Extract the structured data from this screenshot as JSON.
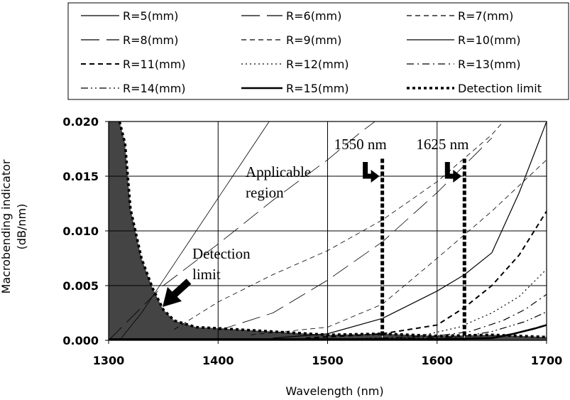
{
  "chart_data": {
    "type": "line",
    "xlabel": "Wavelength (nm)",
    "ylabel": [
      "Macrobending indicator",
      "(dB/nm)"
    ],
    "xlim": [
      1300,
      1700
    ],
    "ylim": [
      0,
      0.02
    ],
    "x_ticks": [
      "1300",
      "1400",
      "1500",
      "1600",
      "1700"
    ],
    "y_ticks": [
      "0.000",
      "0.005",
      "0.010",
      "0.015",
      "0.020"
    ],
    "grid": true,
    "legend_position": "top",
    "series": [
      {
        "name": "R=5(mm)",
        "dash": "solid",
        "width": 0.8,
        "x": [
          1310,
          1330,
          1350,
          1370,
          1400,
          1420,
          1440,
          1460
        ],
        "y": [
          0,
          0.0025,
          0.0055,
          0.0085,
          0.013,
          0.016,
          0.019,
          0.022
        ]
      },
      {
        "name": "R=6(mm)",
        "dash": "longdash",
        "width": 0.8,
        "x": [
          1300,
          1350,
          1400,
          1450,
          1500,
          1530,
          1550
        ],
        "y": [
          0,
          0.005,
          0.0088,
          0.0128,
          0.0165,
          0.019,
          0.0205
        ]
      },
      {
        "name": "R=7(mm)",
        "dash": "dash",
        "width": 0.8,
        "x": [
          1360,
          1400,
          1450,
          1500,
          1550,
          1600,
          1650,
          1665
        ],
        "y": [
          0.001,
          0.0035,
          0.006,
          0.0082,
          0.011,
          0.0145,
          0.0188,
          0.0205
        ]
      },
      {
        "name": "R=8(mm)",
        "dash": "longdash",
        "width": 0.8,
        "x": [
          1400,
          1450,
          1500,
          1550,
          1600,
          1625,
          1650
        ],
        "y": [
          0.0009,
          0.0025,
          0.0055,
          0.009,
          0.0135,
          0.016,
          0.0185
        ]
      },
      {
        "name": "R=9(mm)",
        "dash": "dash",
        "width": 0.8,
        "x": [
          1430,
          1500,
          1550,
          1600,
          1650,
          1700
        ],
        "y": [
          0.0005,
          0.0012,
          0.0033,
          0.0075,
          0.0118,
          0.0165
        ]
      },
      {
        "name": "R=10(mm)",
        "dash": "solid",
        "width": 1.2,
        "x": [
          1450,
          1500,
          1550,
          1600,
          1625,
          1650,
          1675,
          1700
        ],
        "y": [
          0.0002,
          0.0006,
          0.002,
          0.0045,
          0.006,
          0.008,
          0.0135,
          0.02
        ]
      },
      {
        "name": "R=11(mm)",
        "dash": "dash",
        "width": 2,
        "x": [
          1480,
          1550,
          1600,
          1625,
          1650,
          1675,
          1700
        ],
        "y": [
          0.0002,
          0.0006,
          0.0014,
          0.003,
          0.005,
          0.0078,
          0.0118
        ]
      },
      {
        "name": "R=12(mm)",
        "dash": "dot",
        "width": 1.2,
        "x": [
          1500,
          1580,
          1620,
          1650,
          1675,
          1700
        ],
        "y": [
          0.0001,
          0.0003,
          0.0012,
          0.0025,
          0.004,
          0.0065
        ]
      },
      {
        "name": "R=13(mm)",
        "dash": "dashdot",
        "width": 1.2,
        "x": [
          1520,
          1600,
          1630,
          1660,
          1680,
          1700
        ],
        "y": [
          0.0001,
          0.0004,
          0.0008,
          0.0018,
          0.0028,
          0.0042
        ]
      },
      {
        "name": "R=14(mm)",
        "dash": "dashdotdot",
        "width": 1.2,
        "x": [
          1540,
          1620,
          1650,
          1680,
          1700
        ],
        "y": [
          0.0001,
          0.0003,
          0.0008,
          0.0017,
          0.0026
        ]
      },
      {
        "name": "R=15(mm)",
        "dash": "solid",
        "width": 2.6,
        "x": [
          1300,
          1600,
          1650,
          1670,
          1690,
          1700
        ],
        "y": [
          0.0001,
          0.0001,
          0.0002,
          0.0006,
          0.0011,
          0.0014
        ]
      },
      {
        "name": "Detection limit",
        "dash": "dotthick",
        "width": 3.6,
        "x": [
          1310,
          1315,
          1320,
          1330,
          1340,
          1350,
          1360,
          1380,
          1400,
          1450,
          1500,
          1550,
          1600,
          1650,
          1700
        ],
        "y": [
          0.02,
          0.018,
          0.012,
          0.0075,
          0.0048,
          0.0028,
          0.0018,
          0.0012,
          0.0011,
          0.0008,
          0.0005,
          0.0006,
          0.0004,
          0.0005,
          0.0003
        ]
      }
    ],
    "vlines": [
      {
        "x": 1550,
        "label": "1550 nm"
      },
      {
        "x": 1625,
        "label": "1625 nm"
      }
    ],
    "annotations": {
      "applicable": [
        "Applicable",
        "region"
      ],
      "detection": [
        "Detection",
        "limit"
      ]
    }
  },
  "colors": {
    "fill": "#444444",
    "line": "#000000",
    "grid": "#000000"
  }
}
